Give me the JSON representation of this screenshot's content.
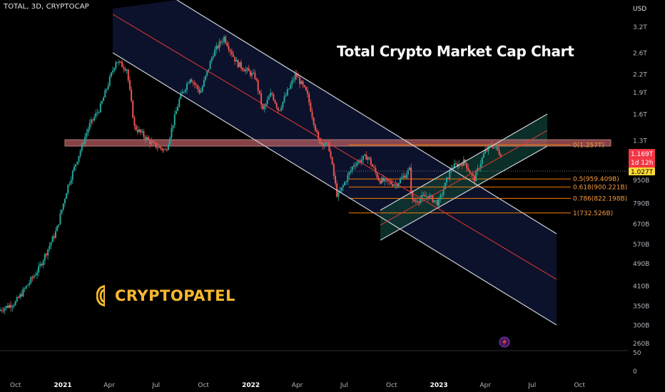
{
  "header": {
    "symbol": "TOTAL, 3D, CRYPTOCAP",
    "currency": "USD"
  },
  "annotation": {
    "title": "Total Crypto Market Cap Chart",
    "logo_text": "CRYPTOPATEL"
  },
  "price_tags": {
    "current_price": "1.169T",
    "countdown": "1d 12h",
    "line_price": "1.027T"
  },
  "colors": {
    "background": "#000000",
    "up_candle": "#26a69a",
    "down_candle": "#ef5350",
    "channel_border": "#cfd2d8",
    "channel_mid": "#e53935",
    "channel_fill": "#0d1430",
    "rising_fill": "#0e2a26",
    "resistance_zone": "#b35a5e",
    "fib_line": "#f57c00",
    "fib_text": "#f59a3e",
    "logo": "#f5b82e",
    "price_tag_red": "#f23645"
  },
  "chart_data": {
    "type": "candlestick",
    "title": "Total Crypto Market Cap Chart",
    "symbol": "TOTAL",
    "timeframe": "3D",
    "source": "CRYPTOCAP",
    "y_scale": "log",
    "y_unit": "USD",
    "y_ticks": [
      "3.2T",
      "2.6T",
      "2.2T",
      "1.9T",
      "1.6T",
      "1.3T",
      "950B",
      "790B",
      "670B",
      "570B",
      "490B",
      "410B",
      "350B",
      "300B",
      "260B"
    ],
    "y_tick_values": [
      3200,
      2600,
      2200,
      1900,
      1600,
      1300,
      950,
      790,
      670,
      570,
      490,
      410,
      350,
      300,
      260
    ],
    "volume_ticks": [
      "50",
      "0"
    ],
    "x_ticks": [
      "Oct",
      "2021",
      "Apr",
      "Jul",
      "Oct",
      "2022",
      "Apr",
      "Jul",
      "Oct",
      "2023",
      "Apr",
      "Jul",
      "Oct"
    ],
    "x_tick_dates": [
      "2020-10-01",
      "2021-01-01",
      "2021-04-01",
      "2021-07-01",
      "2021-10-01",
      "2022-01-01",
      "2022-04-01",
      "2022-07-01",
      "2022-10-01",
      "2023-01-01",
      "2023-04-01",
      "2023-07-01",
      "2023-10-01"
    ],
    "x_range": [
      "2020-09-01",
      "2023-12-20"
    ],
    "price_path": [
      [
        "2020-09-01",
        340
      ],
      [
        "2020-10-01",
        360
      ],
      [
        "2020-11-15",
        470
      ],
      [
        "2020-12-20",
        640
      ],
      [
        "2021-01-10",
        900
      ],
      [
        "2021-02-20",
        1450
      ],
      [
        "2021-03-15",
        1700
      ],
      [
        "2021-04-14",
        2450
      ],
      [
        "2021-05-05",
        2300
      ],
      [
        "2021-05-20",
        1450
      ],
      [
        "2021-06-25",
        1260
      ],
      [
        "2021-07-20",
        1200
      ],
      [
        "2021-08-15",
        1800
      ],
      [
        "2021-09-05",
        2150
      ],
      [
        "2021-09-25",
        1900
      ],
      [
        "2021-10-20",
        2600
      ],
      [
        "2021-11-10",
        2950
      ],
      [
        "2021-12-05",
        2400
      ],
      [
        "2022-01-10",
        2150
      ],
      [
        "2022-01-24",
        1650
      ],
      [
        "2022-02-10",
        1900
      ],
      [
        "2022-02-24",
        1650
      ],
      [
        "2022-03-29",
        2200
      ],
      [
        "2022-04-20",
        1880
      ],
      [
        "2022-05-12",
        1300
      ],
      [
        "2022-06-01",
        1250
      ],
      [
        "2022-06-18",
        830
      ],
      [
        "2022-07-20",
        1080
      ],
      [
        "2022-08-15",
        1150
      ],
      [
        "2022-09-07",
        950
      ],
      [
        "2022-10-10",
        920
      ],
      [
        "2022-11-05",
        1030
      ],
      [
        "2022-11-10",
        800
      ],
      [
        "2022-12-10",
        840
      ],
      [
        "2022-12-31",
        790
      ],
      [
        "2023-01-25",
        1050
      ],
      [
        "2023-02-20",
        1100
      ],
      [
        "2023-03-10",
        950
      ],
      [
        "2023-03-30",
        1180
      ],
      [
        "2023-04-14",
        1260
      ],
      [
        "2023-05-01",
        1169
      ]
    ],
    "current_price": 1169,
    "horizontal_line": 1027,
    "resistance_zone": [
      1230,
      1300
    ],
    "fib_levels": [
      {
        "ratio": "0",
        "value": "1.257T",
        "level": 1257
      },
      {
        "ratio": "0.5",
        "value": "959.409B",
        "level": 959.409
      },
      {
        "ratio": "0.618",
        "value": "900.221B",
        "level": 900.221
      },
      {
        "ratio": "0.786",
        "value": "822.198B",
        "level": 822.198
      },
      {
        "ratio": "1",
        "value": "732.526B",
        "level": 732.526
      }
    ]
  }
}
